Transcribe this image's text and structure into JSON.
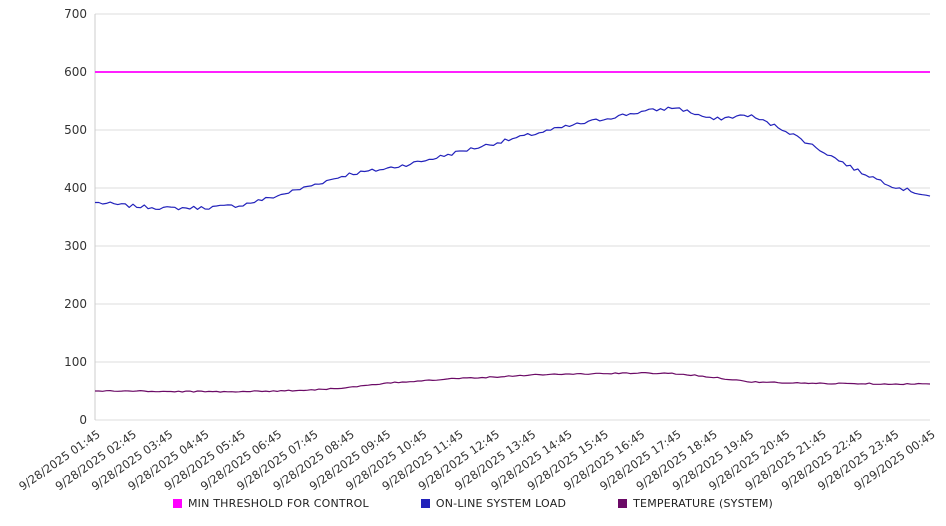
{
  "chart_data": {
    "type": "line",
    "title": "",
    "xlabel": "",
    "ylabel": "",
    "ylim": [
      0,
      700
    ],
    "yticks": [
      0,
      100,
      200,
      300,
      400,
      500,
      600,
      700
    ],
    "grid": true,
    "legend_position": "bottom",
    "categories": [
      "9/28/2025 01:45",
      "9/28/2025 02:45",
      "9/28/2025 03:45",
      "9/28/2025 04:45",
      "9/28/2025 05:45",
      "9/28/2025 06:45",
      "9/28/2025 07:45",
      "9/28/2025 08:45",
      "9/28/2025 09:45",
      "9/28/2025 10:45",
      "9/28/2025 11:45",
      "9/28/2025 12:45",
      "9/28/2025 13:45",
      "9/28/2025 14:45",
      "9/28/2025 15:45",
      "9/28/2025 16:45",
      "9/28/2025 17:45",
      "9/28/2025 18:45",
      "9/28/2025 19:45",
      "9/28/2025 20:45",
      "9/28/2025 21:45",
      "9/28/2025 22:45",
      "9/28/2025 23:45",
      "9/29/2025 00:45"
    ],
    "series": [
      {
        "name": "MIN THRESHOLD FOR CONTROL",
        "color": "#ff00ff",
        "type": "threshold",
        "value": 600
      },
      {
        "name": "ON-LINE SYSTEM LOAD",
        "color": "#2222bb",
        "type": "line",
        "jitter": 3.2,
        "seed": 7,
        "values": [
          375,
          369,
          365,
          366,
          370,
          386,
          405,
          424,
          433,
          446,
          462,
          477,
          492,
          506,
          519,
          531,
          539,
          518,
          526,
          500,
          465,
          430,
          403,
          386
        ]
      },
      {
        "name": "TEMPERATURE (SYSTEM)",
        "color": "#6b0a66",
        "type": "line",
        "jitter": 1.0,
        "seed": 3,
        "values": [
          50,
          50,
          49,
          49,
          49,
          50,
          52,
          56,
          63,
          68,
          72,
          74,
          78,
          79,
          80,
          81,
          80,
          74,
          66,
          64,
          63,
          63,
          62,
          62
        ]
      }
    ]
  }
}
